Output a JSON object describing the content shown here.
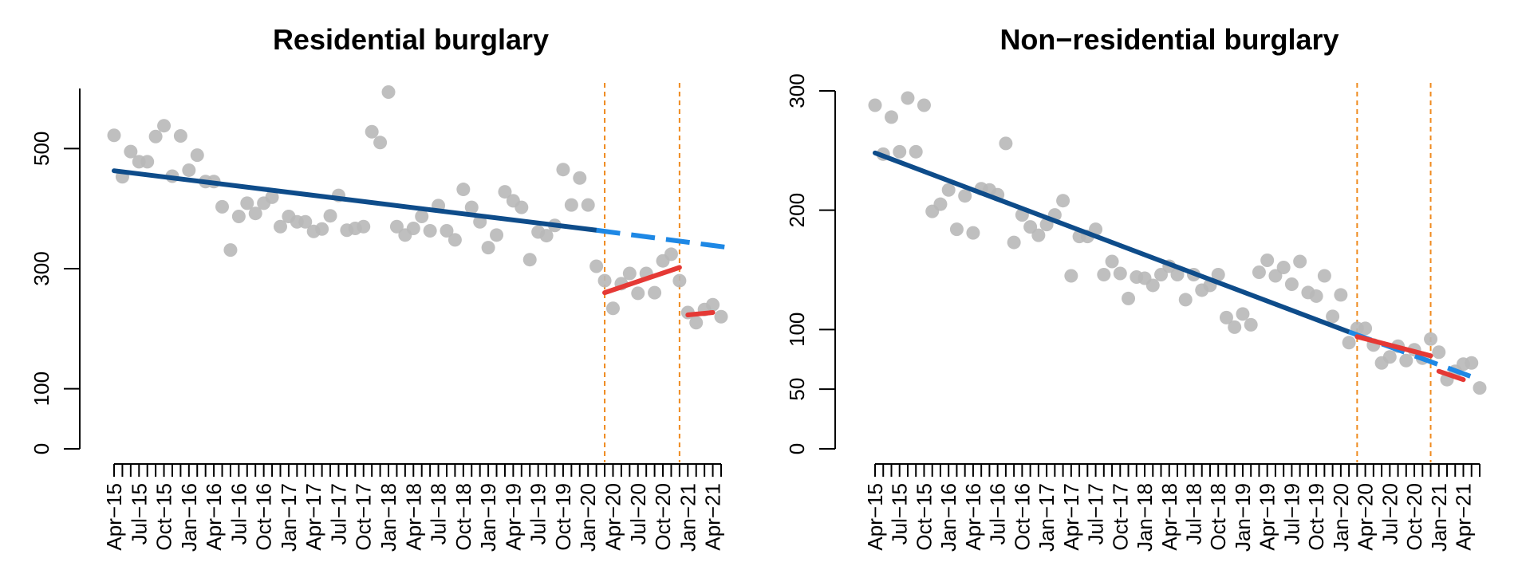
{
  "chart_data": [
    {
      "type": "scatter",
      "title": "Residential burglary",
      "xlabel": "",
      "ylabel": "",
      "ylim": [
        0,
        600
      ],
      "yticks": [
        0,
        100,
        300,
        500
      ],
      "x_start_month": "Apr-15",
      "xtick_labels": [
        "Apr−15",
        "Jul−15",
        "Oct−15",
        "Jan−16",
        "Apr−16",
        "Jul−16",
        "Oct−16",
        "Jan−17",
        "Apr−17",
        "Jul−17",
        "Oct−17",
        "Jan−18",
        "Apr−18",
        "Jul−18",
        "Oct−18",
        "Jan−19",
        "Apr−19",
        "Jul−19",
        "Oct−19",
        "Jan−20",
        "Apr−20",
        "Jul−20",
        "Oct−20",
        "Jan−21",
        "Apr−21"
      ],
      "points": [
        522,
        453,
        495,
        478,
        478,
        520,
        538,
        454,
        521,
        464,
        489,
        445,
        445,
        403,
        331,
        387,
        409,
        392,
        409,
        419,
        370,
        387,
        378,
        378,
        362,
        366,
        388,
        422,
        364,
        367,
        370,
        528,
        510,
        594,
        370,
        356,
        367,
        387,
        363,
        405,
        363,
        348,
        432,
        402,
        378,
        335,
        356,
        428,
        413,
        402,
        315,
        361,
        355,
        372,
        465,
        406,
        451,
        406,
        304,
        280,
        234,
        275,
        292,
        259,
        292,
        260,
        313,
        324,
        280,
        227,
        210,
        232,
        240,
        220
      ],
      "trend_pre": {
        "from": "Apr-15",
        "to": "Feb-20",
        "y": [
          463,
          364
        ]
      },
      "trend_projection": {
        "from": "Feb-20",
        "to": "Jun-21",
        "y": [
          364,
          335
        ]
      },
      "trend_lockdown1": {
        "from": "Mar-20",
        "to": "Dec-20",
        "y": [
          260,
          302
        ]
      },
      "trend_lockdown2": {
        "from": "Jan-21",
        "to": "Apr-21",
        "y": [
          223,
          227
        ]
      },
      "vlines": [
        "Mar-20",
        "Dec-20"
      ],
      "colors": {
        "points": "#b8b8b8",
        "trend": "#0e4c8a",
        "projection": "#1e88e5",
        "lockdown": "#e53935",
        "vline": "#ef8a1e"
      }
    },
    {
      "type": "scatter",
      "title": "Non−residential burglary",
      "xlabel": "",
      "ylabel": "",
      "ylim": [
        0,
        300
      ],
      "yticks": [
        0,
        50,
        100,
        200,
        300
      ],
      "x_start_month": "Apr-15",
      "xtick_labels": [
        "Apr−15",
        "Jul−15",
        "Oct−15",
        "Jan−16",
        "Apr−16",
        "Jul−16",
        "Oct−16",
        "Jan−17",
        "Apr−17",
        "Jul−17",
        "Oct−17",
        "Jan−18",
        "Apr−18",
        "Jul−18",
        "Oct−18",
        "Jan−19",
        "Apr−19",
        "Jul−19",
        "Oct−19",
        "Jan−20",
        "Apr−20",
        "Jul−20",
        "Oct−20",
        "Jan−21",
        "Apr−21"
      ],
      "points": [
        288,
        247,
        278,
        249,
        294,
        249,
        288,
        199,
        205,
        217,
        184,
        212,
        181,
        218,
        217,
        213,
        256,
        173,
        196,
        186,
        179,
        188,
        196,
        208,
        145,
        178,
        178,
        184,
        146,
        157,
        147,
        126,
        144,
        143,
        137,
        146,
        153,
        146,
        125,
        146,
        133,
        137,
        146,
        110,
        102,
        113,
        104,
        148,
        158,
        145,
        152,
        138,
        157,
        131,
        128,
        145,
        111,
        129,
        89,
        101,
        101,
        87,
        72,
        77,
        86,
        74,
        83,
        76,
        92,
        81,
        58,
        65,
        71,
        72,
        51
      ],
      "trend_pre": {
        "from": "Apr-15",
        "to": "Feb-20",
        "y": [
          248,
          98
        ]
      },
      "trend_projection": {
        "from": "Feb-20",
        "to": "Jun-21",
        "y": [
          98,
          58
        ]
      },
      "trend_lockdown1": {
        "from": "Mar-20",
        "to": "Dec-20",
        "y": [
          94,
          78
        ]
      },
      "trend_lockdown2": {
        "from": "Jan-21",
        "to": "Apr-21",
        "y": [
          65,
          58
        ]
      },
      "vlines": [
        "Mar-20",
        "Dec-20"
      ],
      "colors": {
        "points": "#b8b8b8",
        "trend": "#0e4c8a",
        "projection": "#1e88e5",
        "lockdown": "#e53935",
        "vline": "#ef8a1e"
      }
    }
  ]
}
